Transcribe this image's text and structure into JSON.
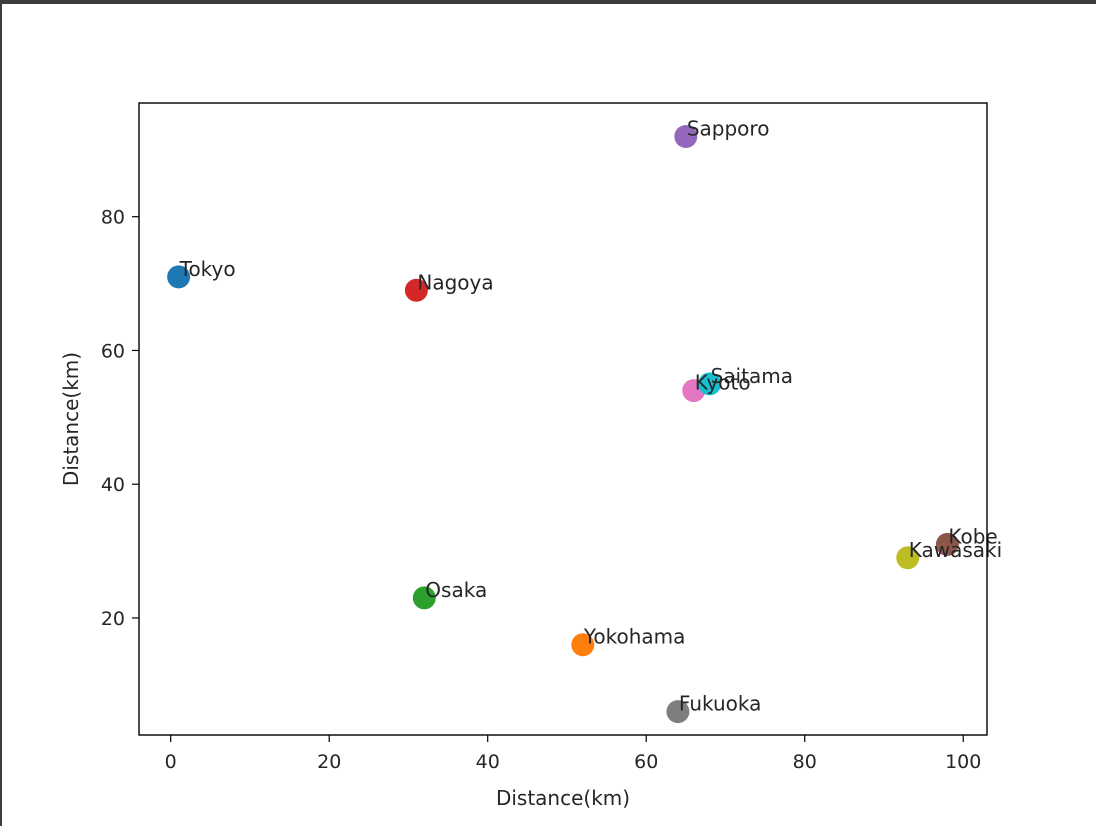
{
  "chart_data": {
    "type": "scatter",
    "title": "",
    "xlabel": "Distance(km)",
    "ylabel": "Distance(km)",
    "xlim": [
      -4,
      103
    ],
    "ylim": [
      2.5,
      97
    ],
    "xticks": [
      0,
      20,
      40,
      60,
      80,
      100
    ],
    "yticks": [
      20,
      40,
      60,
      80
    ],
    "grid": false,
    "points": [
      {
        "label": "Tokyo",
        "x": 1,
        "y": 71,
        "color": "#1f77b4"
      },
      {
        "label": "Yokohama",
        "x": 52,
        "y": 16,
        "color": "#ff7f0e"
      },
      {
        "label": "Osaka",
        "x": 32,
        "y": 23,
        "color": "#2ca02c"
      },
      {
        "label": "Nagoya",
        "x": 31,
        "y": 69,
        "color": "#d62728"
      },
      {
        "label": "Sapporo",
        "x": 65,
        "y": 92,
        "color": "#9467bd"
      },
      {
        "label": "Kobe",
        "x": 98,
        "y": 31,
        "color": "#8c564b"
      },
      {
        "label": "Kyoto",
        "x": 66,
        "y": 54,
        "color": "#e377c2"
      },
      {
        "label": "Fukuoka",
        "x": 64,
        "y": 6,
        "color": "#7f7f7f"
      },
      {
        "label": "Kawasaki",
        "x": 93,
        "y": 29,
        "color": "#bcbd22"
      },
      {
        "label": "Saitama",
        "x": 68,
        "y": 55,
        "color": "#17becf"
      }
    ]
  }
}
